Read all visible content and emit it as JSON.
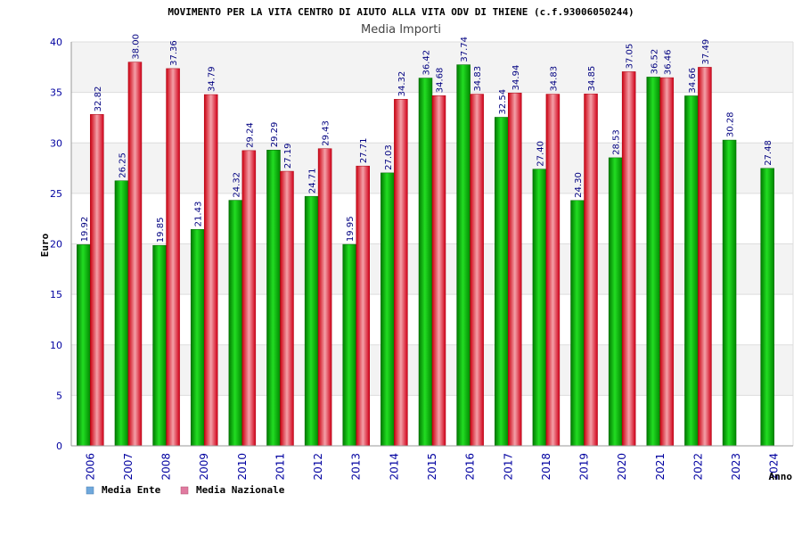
{
  "chart_data": {
    "type": "bar",
    "title": "MOVIMENTO PER LA VITA CENTRO DI AIUTO ALLA VITA ODV DI THIENE (c.f.93006050244)",
    "subtitle": "Media Importi",
    "xlabel": "Anno",
    "ylabel": "Euro",
    "ylim": [
      0,
      40
    ],
    "yticks": [
      0,
      5,
      10,
      15,
      20,
      25,
      30,
      35,
      40
    ],
    "grid": true,
    "legend_position": "bottom-left",
    "categories": [
      "2006",
      "2007",
      "2008",
      "2009",
      "2010",
      "2011",
      "2012",
      "2013",
      "2014",
      "2015",
      "2016",
      "2017",
      "2018",
      "2019",
      "2020",
      "2021",
      "2022",
      "2023",
      "2024"
    ],
    "series": [
      {
        "name": "Media Ente",
        "color": "#00aa00",
        "legend_color": "#6fa8dc",
        "values": [
          19.92,
          26.25,
          19.85,
          21.43,
          24.32,
          29.29,
          24.71,
          19.95,
          27.03,
          36.42,
          37.74,
          32.54,
          27.4,
          24.3,
          28.53,
          36.52,
          34.66,
          30.28,
          27.48
        ],
        "labels": [
          "19.92",
          "26.25",
          "19.85",
          "21.43",
          "24.32",
          "29.29",
          "24.71",
          "19.95",
          "27.03",
          "36.42",
          "37.74",
          "32.54",
          "27.40",
          "24.30",
          "28.53",
          "36.52",
          "34.66",
          "30.28",
          "27.48"
        ]
      },
      {
        "name": "Media Nazionale",
        "color": "#e8001c",
        "legend_color": "#e07aa0",
        "values": [
          32.82,
          38.0,
          37.36,
          34.79,
          29.24,
          27.19,
          29.43,
          27.71,
          34.32,
          34.68,
          34.83,
          34.94,
          34.83,
          34.85,
          37.05,
          36.46,
          37.49,
          null,
          null
        ],
        "labels": [
          "32.82",
          "38.00",
          "37.36",
          "34.79",
          "29.24",
          "27.19",
          "29.43",
          "27.71",
          "34.32",
          "34.68",
          "34.83",
          "34.94",
          "34.83",
          "34.85",
          "37.05",
          "36.46",
          "37.49",
          "",
          ""
        ]
      }
    ]
  }
}
